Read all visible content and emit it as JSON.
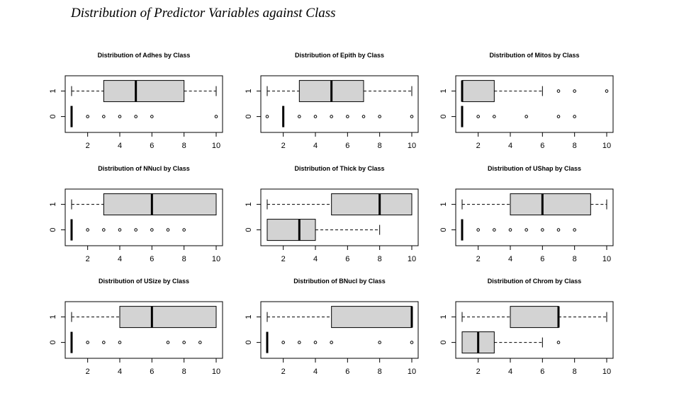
{
  "page": {
    "title": "Distribution of Predictor Variables against Class"
  },
  "style": {
    "box_fill": "#d3d3d3",
    "stroke": "#000000",
    "background": "#ffffff"
  },
  "chart_data": [
    {
      "type": "boxplot",
      "orientation": "horizontal",
      "title": "Distribution of Adhes by Class",
      "xlim": [
        1,
        10
      ],
      "xticks": [
        2,
        4,
        6,
        8,
        10
      ],
      "categories": [
        "0",
        "1"
      ],
      "series": [
        {
          "name": "0",
          "whisker_low": 1,
          "q1": 1,
          "median": 1,
          "q3": 1,
          "whisker_high": 1,
          "outliers": [
            2,
            3,
            4,
            5,
            6,
            10
          ]
        },
        {
          "name": "1",
          "whisker_low": 1,
          "q1": 3,
          "median": 5,
          "q3": 8,
          "whisker_high": 10,
          "outliers": []
        }
      ]
    },
    {
      "type": "boxplot",
      "orientation": "horizontal",
      "title": "Distribution of Epith by Class",
      "xlim": [
        1,
        10
      ],
      "xticks": [
        2,
        4,
        6,
        8,
        10
      ],
      "categories": [
        "0",
        "1"
      ],
      "series": [
        {
          "name": "0",
          "whisker_low": 2,
          "q1": 2,
          "median": 2,
          "q3": 2,
          "whisker_high": 2,
          "outliers": [
            1,
            3,
            4,
            5,
            6,
            7,
            8,
            10
          ]
        },
        {
          "name": "1",
          "whisker_low": 1,
          "q1": 3,
          "median": 5,
          "q3": 7,
          "whisker_high": 10,
          "outliers": []
        }
      ]
    },
    {
      "type": "boxplot",
      "orientation": "horizontal",
      "title": "Distribution of Mitos by Class",
      "xlim": [
        1,
        10
      ],
      "xticks": [
        2,
        4,
        6,
        8,
        10
      ],
      "categories": [
        "0",
        "1"
      ],
      "series": [
        {
          "name": "0",
          "whisker_low": 1,
          "q1": 1,
          "median": 1,
          "q3": 1,
          "whisker_high": 1,
          "outliers": [
            2,
            3,
            5,
            7,
            8
          ]
        },
        {
          "name": "1",
          "whisker_low": 1,
          "q1": 1,
          "median": 1,
          "q3": 3,
          "whisker_high": 6,
          "outliers": [
            7,
            8,
            10
          ]
        }
      ]
    },
    {
      "type": "boxplot",
      "orientation": "horizontal",
      "title": "Distribution of NNucl by Class",
      "xlim": [
        1,
        10
      ],
      "xticks": [
        2,
        4,
        6,
        8,
        10
      ],
      "categories": [
        "0",
        "1"
      ],
      "series": [
        {
          "name": "0",
          "whisker_low": 1,
          "q1": 1,
          "median": 1,
          "q3": 1,
          "whisker_high": 1,
          "outliers": [
            2,
            3,
            4,
            5,
            6,
            7,
            8
          ]
        },
        {
          "name": "1",
          "whisker_low": 1,
          "q1": 3,
          "median": 6,
          "q3": 10,
          "whisker_high": 10,
          "outliers": []
        }
      ]
    },
    {
      "type": "boxplot",
      "orientation": "horizontal",
      "title": "Distribution of Thick by Class",
      "xlim": [
        1,
        10
      ],
      "xticks": [
        2,
        4,
        6,
        8,
        10
      ],
      "categories": [
        "0",
        "1"
      ],
      "series": [
        {
          "name": "0",
          "whisker_low": 1,
          "q1": 1,
          "median": 3,
          "q3": 4,
          "whisker_high": 8,
          "outliers": []
        },
        {
          "name": "1",
          "whisker_low": 1,
          "q1": 5,
          "median": 8,
          "q3": 10,
          "whisker_high": 10,
          "outliers": []
        }
      ]
    },
    {
      "type": "boxplot",
      "orientation": "horizontal",
      "title": "Distribution of UShap by Class",
      "xlim": [
        1,
        10
      ],
      "xticks": [
        2,
        4,
        6,
        8,
        10
      ],
      "categories": [
        "0",
        "1"
      ],
      "series": [
        {
          "name": "0",
          "whisker_low": 1,
          "q1": 1,
          "median": 1,
          "q3": 1,
          "whisker_high": 1,
          "outliers": [
            2,
            3,
            4,
            5,
            6,
            7,
            8
          ]
        },
        {
          "name": "1",
          "whisker_low": 1,
          "q1": 4,
          "median": 6,
          "q3": 9,
          "whisker_high": 10,
          "outliers": []
        }
      ]
    },
    {
      "type": "boxplot",
      "orientation": "horizontal",
      "title": "Distribution of USize by Class",
      "xlim": [
        1,
        10
      ],
      "xticks": [
        2,
        4,
        6,
        8,
        10
      ],
      "categories": [
        "0",
        "1"
      ],
      "series": [
        {
          "name": "0",
          "whisker_low": 1,
          "q1": 1,
          "median": 1,
          "q3": 1,
          "whisker_high": 1,
          "outliers": [
            2,
            3,
            4,
            7,
            8,
            9
          ]
        },
        {
          "name": "1",
          "whisker_low": 1,
          "q1": 4,
          "median": 6,
          "q3": 10,
          "whisker_high": 10,
          "outliers": []
        }
      ]
    },
    {
      "type": "boxplot",
      "orientation": "horizontal",
      "title": "Distribution of BNucl by Class",
      "xlim": [
        1,
        10
      ],
      "xticks": [
        2,
        4,
        6,
        8,
        10
      ],
      "categories": [
        "0",
        "1"
      ],
      "series": [
        {
          "name": "0",
          "whisker_low": 1,
          "q1": 1,
          "median": 1,
          "q3": 1,
          "whisker_high": 1,
          "outliers": [
            2,
            3,
            4,
            5,
            8,
            10
          ]
        },
        {
          "name": "1",
          "whisker_low": 1,
          "q1": 5,
          "median": 10,
          "q3": 10,
          "whisker_high": 10,
          "outliers": []
        }
      ]
    },
    {
      "type": "boxplot",
      "orientation": "horizontal",
      "title": "Distribution of Chrom by Class",
      "xlim": [
        1,
        10
      ],
      "xticks": [
        2,
        4,
        6,
        8,
        10
      ],
      "categories": [
        "0",
        "1"
      ],
      "series": [
        {
          "name": "0",
          "whisker_low": 1,
          "q1": 1,
          "median": 2,
          "q3": 3,
          "whisker_high": 6,
          "outliers": [
            7
          ]
        },
        {
          "name": "1",
          "whisker_low": 1,
          "q1": 4,
          "median": 7,
          "q3": 7,
          "whisker_high": 10,
          "outliers": []
        }
      ]
    }
  ]
}
